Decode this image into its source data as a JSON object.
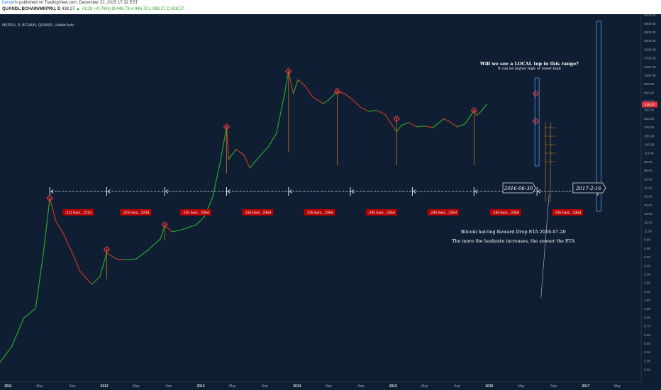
{
  "header": {
    "user": "fowstrife",
    "published": "published on TradingView.com, December 22, 2015 17:32 EST",
    "symbol": "QUANDL:BCHAIN/MKPRU, D",
    "last": "438.27",
    "change": "▲ +3.29 (+0.76%)",
    "ohlc": "O:446.73 H:446.73 L:438.27 C:438.27"
  },
  "chart_title": "MKPRU, D, BCHAIN, QUANDL, Heikin Ashi",
  "colors": {
    "background": "#0f1e33",
    "up": "#2aa52a",
    "down": "#c0392b",
    "marker": "#e0363b",
    "bars_label_bg": "#b30000",
    "vline": "#d18a1a",
    "dashed": "#e8e8e8",
    "box": "#4a8fd6"
  },
  "chart_data": {
    "type": "line",
    "title": "MKPRU, D, BCHAIN, QUANDL, Heikin Ashi",
    "xlabel": "",
    "ylabel": "",
    "log_scale": true,
    "ylim": [
      0.2,
      6000
    ],
    "x_ticks": [
      "2011",
      "May",
      "Sep",
      "2012",
      "May",
      "Sep",
      "2013",
      "May",
      "Sep",
      "2014",
      "May",
      "Sep",
      "2015",
      "May",
      "Sep",
      "2016",
      "May",
      "Sep",
      "2017",
      "May"
    ],
    "y_ticks": [
      "6000.00",
      "4600.00",
      "3600.00",
      "2800.00",
      "2200.00",
      "1700.00",
      "1340.00",
      "1060.00",
      "835.00",
      "655.00",
      "515.00",
      "395.00",
      "305.00",
      "235.00",
      "185.00",
      "145.00",
      "113.00",
      "88.00",
      "69.00",
      "53.00",
      "41.00",
      "32.00",
      "25.00",
      "19.00",
      "15.00",
      "11.50",
      "8.90",
      "6.90",
      "5.40",
      "4.20",
      "3.30",
      "2.60",
      "2.00",
      "1.55",
      "1.20",
      "0.95",
      "0.75",
      "0.59",
      "0.46",
      "0.36",
      "0.28",
      "0.22"
    ],
    "price_label": "438.27",
    "series": [
      {
        "name": "",
        "x": [
          "2010-12-01",
          "2011-01-15",
          "2011-03-01",
          "2011-04-15",
          "2011-05-15",
          "2011-06-08",
          "2011-07-01",
          "2011-08-01",
          "2011-09-01",
          "2011-10-01",
          "2011-11-15",
          "2011-12-15",
          "2012-01-10",
          "2012-02-15",
          "2012-03-15",
          "2012-05-01",
          "2012-06-15",
          "2012-08-01",
          "2012-08-17",
          "2012-09-15",
          "2012-10-15",
          "2012-11-15",
          "2012-12-15",
          "2013-01-15",
          "2013-02-15",
          "2013-03-15",
          "2013-04-09",
          "2013-04-17",
          "2013-05-15",
          "2013-06-15",
          "2013-07-06",
          "2013-08-15",
          "2013-09-15",
          "2013-10-15",
          "2013-11-15",
          "2013-11-30",
          "2013-12-18",
          "2014-01-05",
          "2014-02-01",
          "2014-03-01",
          "2014-04-10",
          "2014-05-01",
          "2014-06-03",
          "2014-07-01",
          "2014-08-01",
          "2014-09-01",
          "2014-10-01",
          "2014-11-01",
          "2014-12-01",
          "2015-01-14",
          "2015-02-01",
          "2015-03-01",
          "2015-04-01",
          "2015-05-01",
          "2015-06-01",
          "2015-07-12",
          "2015-08-01",
          "2015-09-01",
          "2015-10-01",
          "2015-11-04",
          "2015-11-15",
          "2015-12-01",
          "2015-12-22"
        ],
        "y": [
          0.25,
          0.4,
          0.9,
          1.2,
          6,
          29,
          15,
          10,
          6,
          3.5,
          2.4,
          3,
          6,
          5,
          4.9,
          5,
          6.5,
          9,
          13,
          11,
          11.5,
          12.5,
          13.5,
          17,
          30,
          80,
          230,
          90,
          120,
          100,
          70,
          100,
          130,
          190,
          600,
          1150,
          600,
          900,
          750,
          550,
          450,
          500,
          640,
          600,
          500,
          400,
          360,
          370,
          330,
          200,
          240,
          260,
          230,
          235,
          225,
          290,
          270,
          230,
          250,
          370,
          320,
          360,
          438
        ]
      }
    ],
    "markers": [
      {
        "x": "2011-06-08",
        "y": 29
      },
      {
        "x": "2012-01-10",
        "y": 6.6
      },
      {
        "x": "2012-08-17",
        "y": 13.5
      },
      {
        "x": "2013-04-09",
        "y": 230
      },
      {
        "x": "2013-11-30",
        "y": 1150
      },
      {
        "x": "2014-06-03",
        "y": 640
      },
      {
        "x": "2015-01-14",
        "y": 290
      },
      {
        "x": "2015-11-04",
        "y": 370
      },
      {
        "x": "2016-06-25",
        "y": 600
      },
      {
        "x": "2016-06-25",
        "y": 270
      }
    ],
    "bar_counts": [
      "-211 bars, -211d",
      "-223 bars, -223d",
      "-235 bars, -235d",
      "-235 bars, -235d",
      "-235 bars, -235d",
      "-235 bars, -235d",
      "-235 bars, -235d",
      "-235 bars, -235d",
      "-235 bars, -235d",
      "-235 bars, -235d"
    ],
    "bar_dates": [
      "2011-06-08",
      "2012-01-10",
      "2012-08-17",
      "2013-04-09",
      "2013-11-30",
      "2014-07-23",
      "2015-03-15",
      "2015-11-04",
      "2016-06-30",
      "2017-02-16"
    ],
    "date_boxes": [
      "2016-06-30",
      "2017-2-16"
    ],
    "annotations": {
      "question": "Will we see a LOCAL top in this range?",
      "question_sub": "It can be higher high or lower high",
      "halving": "Bitcoin halving Reward Drop ETA 2016-07-20",
      "halving_sub": "The more the hashrate increases, the sooner the ETA"
    }
  }
}
